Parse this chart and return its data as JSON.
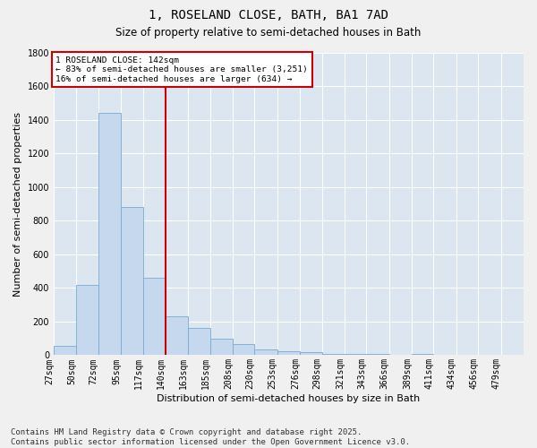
{
  "title": "1, ROSELAND CLOSE, BATH, BA1 7AD",
  "subtitle": "Size of property relative to semi-detached houses in Bath",
  "xlabel": "Distribution of semi-detached houses by size in Bath",
  "ylabel": "Number of semi-detached properties",
  "bar_color": "#c5d8ed",
  "bar_edge_color": "#7aaad0",
  "background_color": "#dce6f0",
  "grid_color": "#ffffff",
  "vline_x": 140,
  "vline_color": "#cc0000",
  "annotation_box_color": "#cc0000",
  "annotation_lines": [
    "1 ROSELAND CLOSE: 142sqm",
    "← 83% of semi-detached houses are smaller (3,251)",
    "16% of semi-detached houses are larger (634) →"
  ],
  "categories": [
    "27sqm",
    "50sqm",
    "72sqm",
    "95sqm",
    "117sqm",
    "140sqm",
    "163sqm",
    "185sqm",
    "208sqm",
    "230sqm",
    "253sqm",
    "276sqm",
    "298sqm",
    "321sqm",
    "343sqm",
    "366sqm",
    "389sqm",
    "411sqm",
    "434sqm",
    "456sqm",
    "479sqm"
  ],
  "bin_edges": [
    27,
    50,
    72,
    95,
    117,
    140,
    163,
    185,
    208,
    230,
    253,
    276,
    298,
    321,
    343,
    366,
    389,
    411,
    434,
    456,
    479,
    502
  ],
  "values": [
    55,
    420,
    1440,
    880,
    460,
    230,
    160,
    100,
    65,
    35,
    22,
    18,
    10,
    8,
    5,
    3,
    10,
    4,
    1,
    2,
    0
  ],
  "ylim": [
    0,
    1800
  ],
  "yticks": [
    0,
    200,
    400,
    600,
    800,
    1000,
    1200,
    1400,
    1600,
    1800
  ],
  "footnote": "Contains HM Land Registry data © Crown copyright and database right 2025.\nContains public sector information licensed under the Open Government Licence v3.0.",
  "title_fontsize": 10,
  "subtitle_fontsize": 8.5,
  "label_fontsize": 8,
  "tick_fontsize": 7,
  "footnote_fontsize": 6.5
}
